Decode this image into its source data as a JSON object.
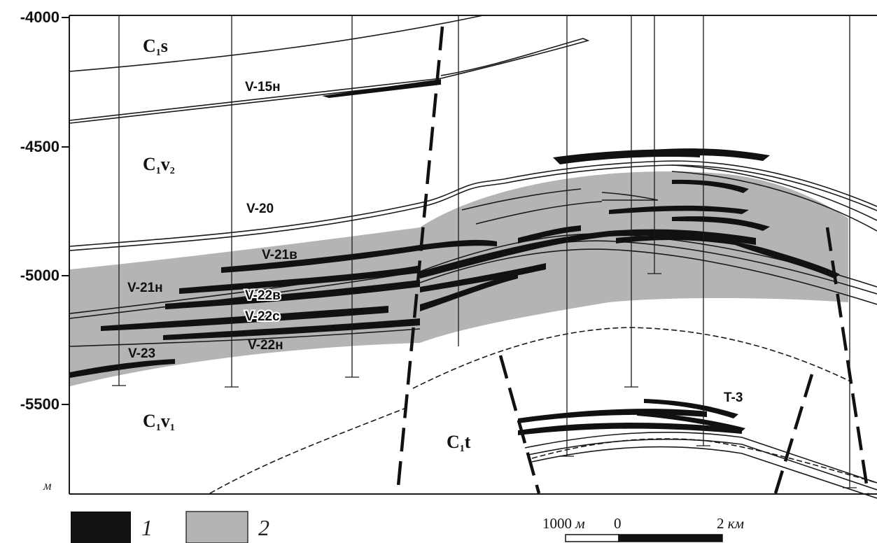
{
  "axis": {
    "ticks": [
      "-4000",
      "-4500",
      "-5000",
      "-5500"
    ],
    "unit": "м"
  },
  "strata": {
    "c1s": {
      "main": "C",
      "sub": "1",
      "suffix": "s"
    },
    "c1v2": {
      "main": "C",
      "sub": "1",
      "suffix": "v",
      "sub2": "2"
    },
    "c1v1": {
      "main": "C",
      "sub": "1",
      "suffix": "v",
      "sub2": "1"
    },
    "c1t": {
      "main": "C",
      "sub": "1",
      "suffix": "t"
    }
  },
  "layers": {
    "v15n": "V-15н",
    "v20": "V-20",
    "v21v": "V-21в",
    "v21n": "V-21н",
    "v22v": "V-22в",
    "v22s": "V-22с",
    "v22n": "V-22н",
    "v23": "V-23",
    "t3": "T-3"
  },
  "legend": {
    "item1": "1",
    "item2": "2"
  },
  "scalebar": {
    "left": "1000",
    "left_unit": "м",
    "zero": "0",
    "right": "2",
    "right_unit": "км"
  },
  "colors": {
    "reservoir": "#111111",
    "zone": "#b4b4b4",
    "line": "#1a1a1a"
  }
}
